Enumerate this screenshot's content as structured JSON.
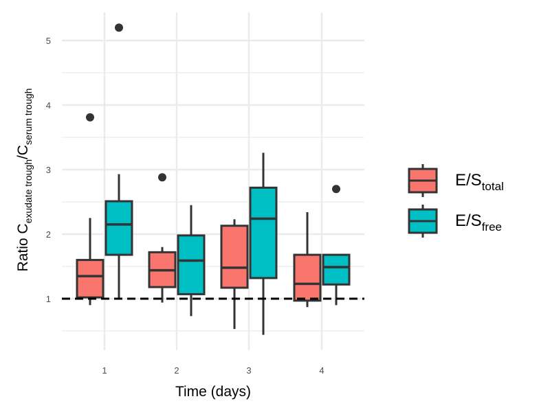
{
  "chart_data": {
    "type": "boxplot",
    "xlabel": "Time (days)",
    "ylabel": {
      "prefix": "Ratio C",
      "sub1": "exudate trough",
      "mid": "/C",
      "sub2": "serum trough"
    },
    "categories": [
      "1",
      "2",
      "3",
      "4"
    ],
    "ylim": [
      0.22,
      5.35
    ],
    "yticks": [
      1,
      2,
      3,
      4,
      5
    ],
    "grid": true,
    "legend_position": "right",
    "reference_line": {
      "y": 1,
      "style": "dashed"
    },
    "series": [
      {
        "name": {
          "main": "E/S",
          "sub": "total"
        },
        "color": "#F8766D",
        "boxes": [
          {
            "category": "1",
            "min": 0.9,
            "q1": 1.02,
            "median": 1.35,
            "q3": 1.6,
            "max": 2.25,
            "outliers": [
              3.81
            ]
          },
          {
            "category": "2",
            "min": 0.94,
            "q1": 1.18,
            "median": 1.44,
            "q3": 1.72,
            "max": 1.8,
            "outliers": [
              2.88
            ]
          },
          {
            "category": "3",
            "min": 0.53,
            "q1": 1.17,
            "median": 1.48,
            "q3": 2.13,
            "max": 2.23,
            "outliers": []
          },
          {
            "category": "4",
            "min": 0.87,
            "q1": 0.97,
            "median": 1.23,
            "q3": 1.68,
            "max": 2.34,
            "outliers": []
          }
        ]
      },
      {
        "name": {
          "main": "E/S",
          "sub": "free"
        },
        "color": "#00BFC4",
        "boxes": [
          {
            "category": "1",
            "min": 1.0,
            "q1": 1.68,
            "median": 2.15,
            "q3": 2.51,
            "max": 2.93,
            "outliers": [
              5.2
            ]
          },
          {
            "category": "2",
            "min": 0.73,
            "q1": 1.07,
            "median": 1.59,
            "q3": 1.98,
            "max": 2.45,
            "outliers": []
          },
          {
            "category": "3",
            "min": 0.44,
            "q1": 1.32,
            "median": 2.24,
            "q3": 2.72,
            "max": 3.26,
            "outliers": []
          },
          {
            "category": "4",
            "min": 0.9,
            "q1": 1.22,
            "median": 1.49,
            "q3": 1.68,
            "max": 1.68,
            "outliers": [
              2.7
            ]
          }
        ]
      }
    ]
  }
}
